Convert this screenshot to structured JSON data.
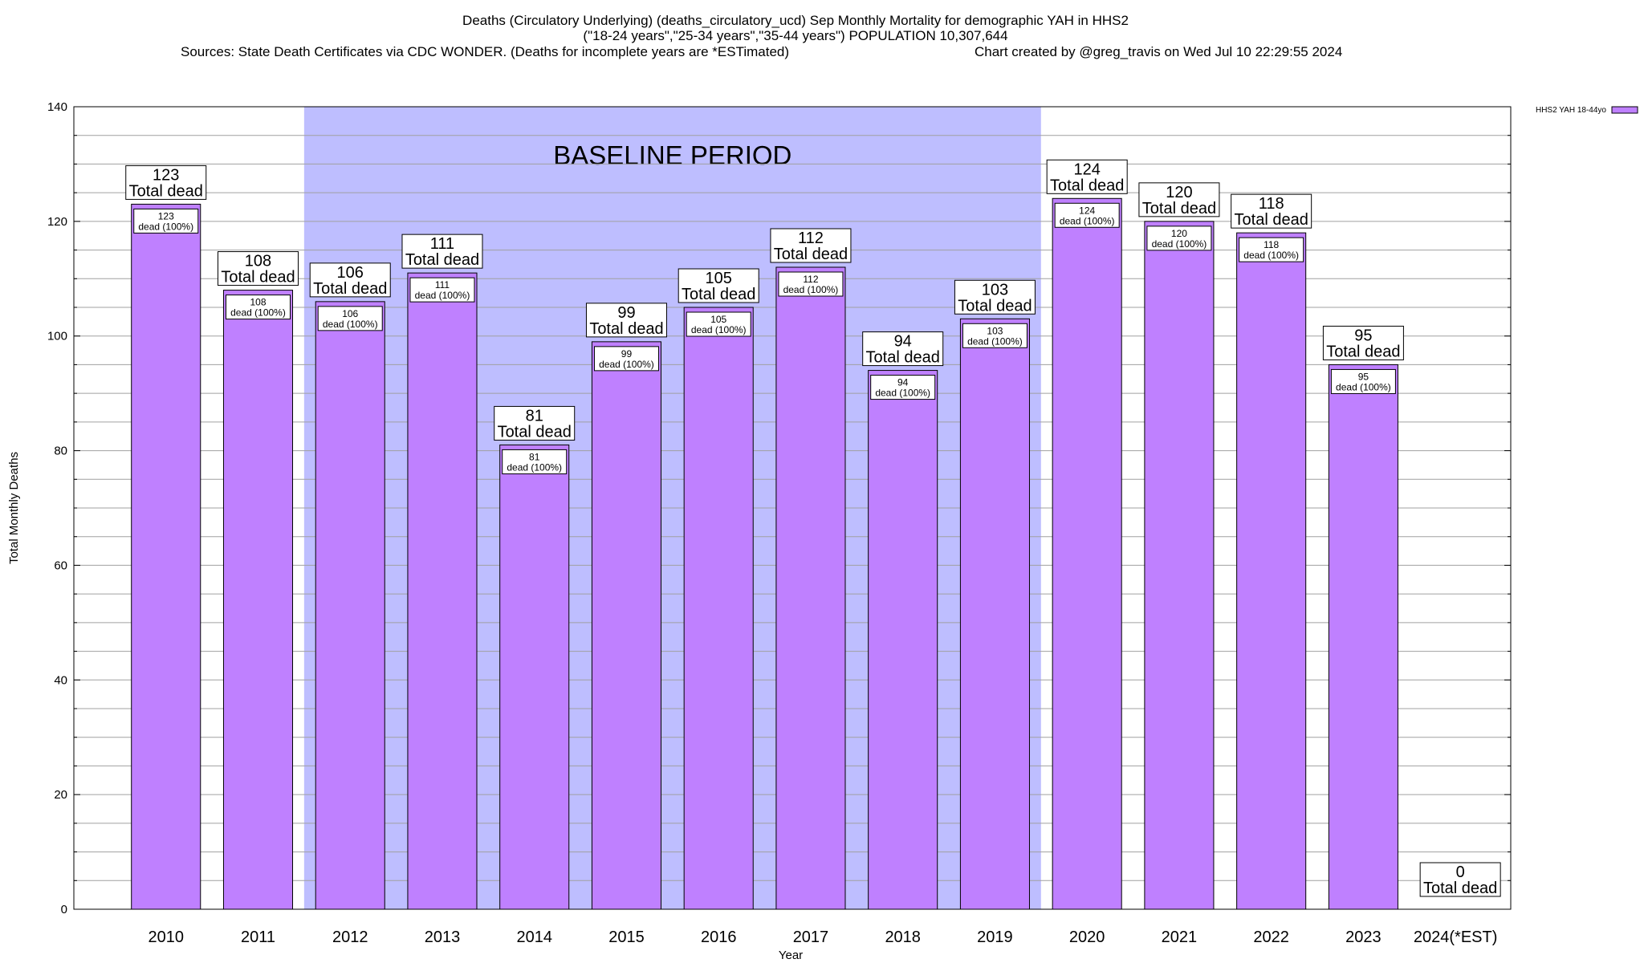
{
  "chart_data": {
    "type": "bar",
    "title_lines": [
      "Deaths (Circulatory Underlying) (deaths_circulatory_ucd) Sep Monthly Mortality for demographic YAH in HHS2",
      "(\"18-24 years\",\"25-34 years\",\"35-44 years\") POPULATION 10,307,644",
      "Sources: State Death Certificates via CDC WONDER. (Deaths for incomplete years are *ESTimated)",
      "Chart created by @greg_travis on Wed Jul 10 22:29:55 2024"
    ],
    "xlabel": "Year",
    "ylabel": "Total Monthly Deaths",
    "ylim": [
      0,
      140
    ],
    "yticks": [
      "0",
      "20",
      "40",
      "60",
      "80",
      "100",
      "120",
      "140"
    ],
    "minor_grid_step": 5,
    "grid": true,
    "categories": [
      "2010",
      "2011",
      "2012",
      "2013",
      "2014",
      "2015",
      "2016",
      "2017",
      "2018",
      "2019",
      "2020",
      "2021",
      "2022",
      "2023",
      "2024(*EST)"
    ],
    "values": [
      123,
      108,
      106,
      111,
      81,
      99,
      105,
      112,
      94,
      103,
      124,
      120,
      118,
      95,
      0
    ],
    "outer_label_suffix": "Total dead",
    "inner_label_suffix": "dead (100%)",
    "baseline": {
      "label": "BASELINE PERIOD",
      "from": "2012",
      "to": "2019"
    },
    "legend": {
      "label": "HHS2 YAH 18-44yo",
      "position": "top-right"
    },
    "colors": {
      "bar": "#bf80ff",
      "baseline_band": "#bebeff",
      "grid": "#a0a0a0"
    }
  }
}
